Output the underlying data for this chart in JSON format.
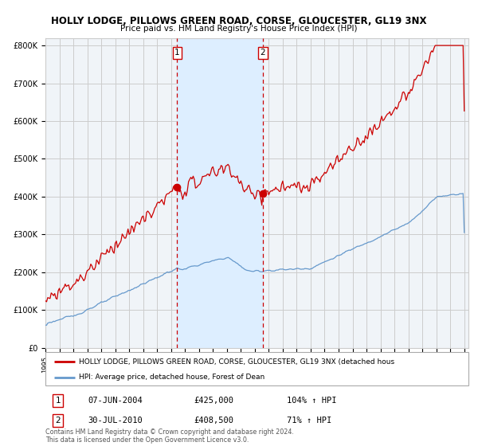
{
  "title_line1": "HOLLY LODGE, PILLOWS GREEN ROAD, CORSE, GLOUCESTER, GL19 3NX",
  "title_line2": "Price paid vs. HM Land Registry's House Price Index (HPI)",
  "legend_line1": "HOLLY LODGE, PILLOWS GREEN ROAD, CORSE, GLOUCESTER, GL19 3NX (detached hous",
  "legend_line2": "HPI: Average price, detached house, Forest of Dean",
  "transaction1_date": "07-JUN-2004",
  "transaction1_price": "£425,000",
  "transaction1_hpi": "104% ↑ HPI",
  "transaction2_date": "30-JUL-2010",
  "transaction2_price": "£408,500",
  "transaction2_hpi": "71% ↑ HPI",
  "footnote": "Contains HM Land Registry data © Crown copyright and database right 2024.\nThis data is licensed under the Open Government Licence v3.0.",
  "red_line_color": "#cc0000",
  "blue_line_color": "#6699cc",
  "background_color": "#ffffff",
  "plot_bg_color": "#f0f4f8",
  "shaded_region_color": "#ddeeff",
  "grid_color": "#cccccc",
  "ylim": [
    0,
    820000
  ],
  "transaction1_x": 2004.44,
  "transaction2_x": 2010.58,
  "price1": 425000,
  "price2": 408500
}
